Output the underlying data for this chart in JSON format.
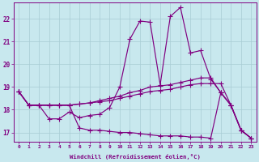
{
  "xlabel": "Windchill (Refroidissement éolien,°C)",
  "background_color": "#c8e8ee",
  "line_color": "#800080",
  "grid_color": "#a8ccd4",
  "ylim": [
    16.6,
    22.7
  ],
  "yticks": [
    17,
    18,
    19,
    20,
    21,
    22
  ],
  "line1": [
    18.8,
    18.2,
    18.2,
    17.6,
    17.6,
    17.9,
    17.65,
    17.75,
    17.8,
    18.1,
    19.0,
    21.1,
    21.9,
    21.85,
    19.1,
    22.1,
    22.5,
    20.5,
    20.6,
    19.35,
    18.75,
    18.2,
    17.1,
    16.75
  ],
  "line2": [
    18.8,
    18.2,
    18.2,
    18.2,
    18.2,
    18.2,
    18.25,
    18.3,
    18.4,
    18.5,
    18.6,
    18.75,
    18.85,
    19.0,
    19.05,
    19.1,
    19.2,
    19.3,
    19.4,
    19.4,
    18.75,
    18.2,
    17.1,
    16.75
  ],
  "line3": [
    18.8,
    18.2,
    18.2,
    18.2,
    18.2,
    18.2,
    18.25,
    18.3,
    18.35,
    18.4,
    18.5,
    18.6,
    18.7,
    18.8,
    18.85,
    18.9,
    19.0,
    19.1,
    19.15,
    19.15,
    19.15,
    18.2,
    17.1,
    16.75
  ],
  "line4": [
    18.8,
    18.2,
    18.2,
    18.2,
    18.2,
    18.2,
    17.2,
    17.1,
    17.1,
    17.05,
    17.0,
    17.0,
    16.95,
    16.9,
    16.85,
    16.85,
    16.85,
    16.8,
    16.8,
    16.75,
    18.75,
    18.2,
    17.1,
    16.75
  ]
}
